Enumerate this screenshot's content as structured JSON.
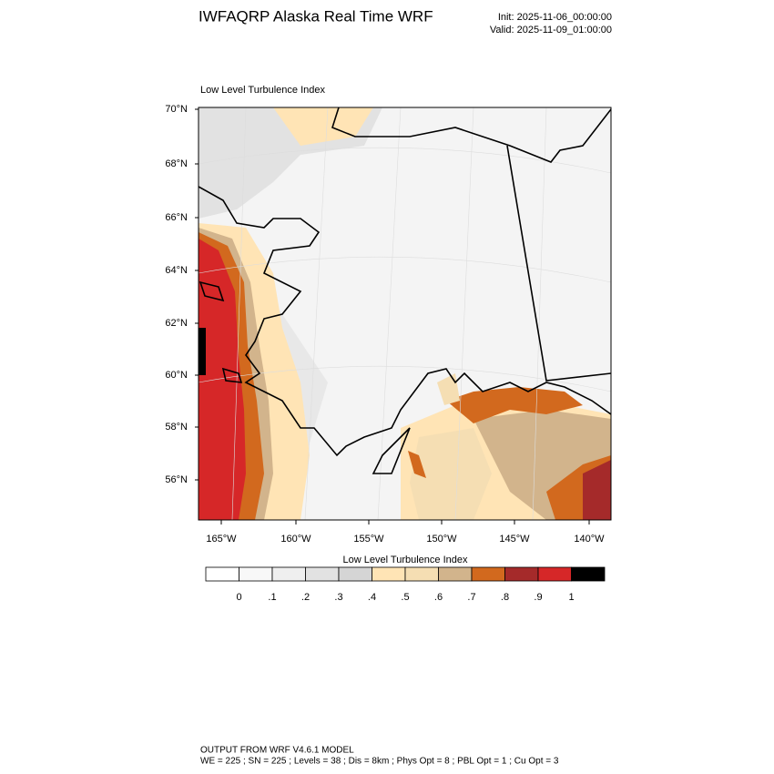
{
  "header": {
    "title": "IWFAQRP Alaska Real Time WRF",
    "init": "Init: 2025-11-06_00:00:00",
    "valid": "Valid: 2025-11-09_01:00:00"
  },
  "map": {
    "title": "Low Level Turbulence Index",
    "lat_labels": [
      "70°N",
      "68°N",
      "66°N",
      "64°N",
      "62°N",
      "60°N",
      "58°N",
      "56°N"
    ],
    "lon_labels": [
      "165°W",
      "160°W",
      "155°W",
      "150°W",
      "145°W",
      "140°W"
    ]
  },
  "colorbar": {
    "title": "Low Level Turbulence Index",
    "colors": [
      "#ffffff",
      "#f8f8f8",
      "#efefef",
      "#e2e2e2",
      "#d5d5d5",
      "#ffe4b5",
      "#f5deb3",
      "#d2b48c",
      "#d2691e",
      "#a52a2a",
      "#d62728",
      "#000000"
    ],
    "lim": [
      -0.1,
      1.1
    ],
    "ticks": [
      0,
      {
        "value": 0.1,
        "label": ".1"
      },
      {
        "value": 0.2,
        "label": ".2"
      },
      {
        "value": 0.3,
        "label": ".3"
      },
      {
        "value": 0.4,
        "label": ".4"
      },
      {
        "value": 0.5,
        "label": ".5"
      },
      {
        "value": 0.6,
        "label": ".6"
      },
      {
        "value": 0.7,
        "label": ".7"
      },
      {
        "value": 0.8,
        "label": ".8"
      },
      {
        "value": 0.9,
        "label": ".9"
      },
      1
    ]
  },
  "footer": {
    "line1": "OUTPUT FROM WRF V4.6.1 MODEL",
    "line2": "WE = 225 ; SN = 225 ; Levels = 38 ; Dis = 8km ; Phys Opt = 8 ; PBL Opt = 1 ; Cu Opt = 3"
  }
}
